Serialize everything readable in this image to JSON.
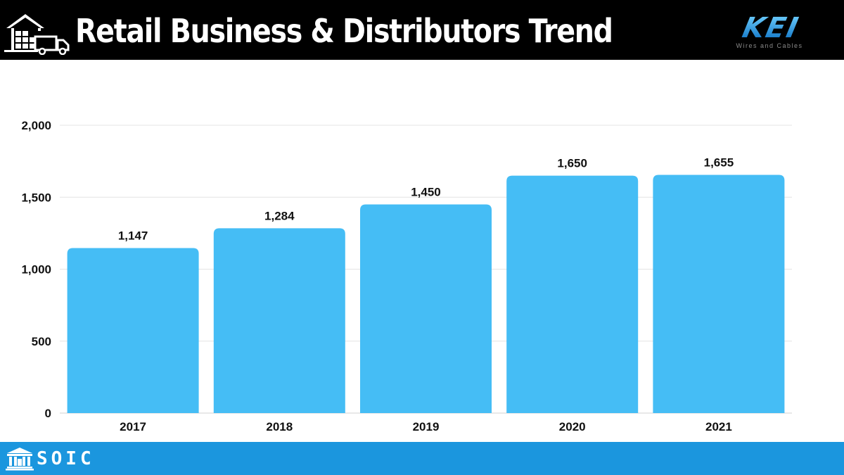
{
  "header": {
    "title": "Retail Business & Distributors Trend",
    "icon": "warehouse-truck-icon",
    "background": "#000000"
  },
  "brand": {
    "name": "KEI",
    "tagline": "Wires and Cables",
    "color": "#1a9ae6"
  },
  "footer": {
    "text": "SOIC",
    "icon": "institution-building-icon",
    "background": "#1b96de"
  },
  "chart_data": {
    "type": "bar",
    "categories": [
      "2017",
      "2018",
      "2019",
      "2020",
      "2021"
    ],
    "values": [
      1147,
      1284,
      1450,
      1650,
      1655
    ],
    "value_labels": [
      "1,147",
      "1,284",
      "1,450",
      "1,650",
      "1,655"
    ],
    "ylim": [
      0,
      2000
    ],
    "yticks": [
      0,
      500,
      1000,
      1500,
      2000
    ],
    "ytick_labels": [
      "0",
      "500",
      "1,000",
      "1,500",
      "2,000"
    ],
    "grid": true,
    "legend": "none",
    "bar_color": "#45bdf5"
  }
}
